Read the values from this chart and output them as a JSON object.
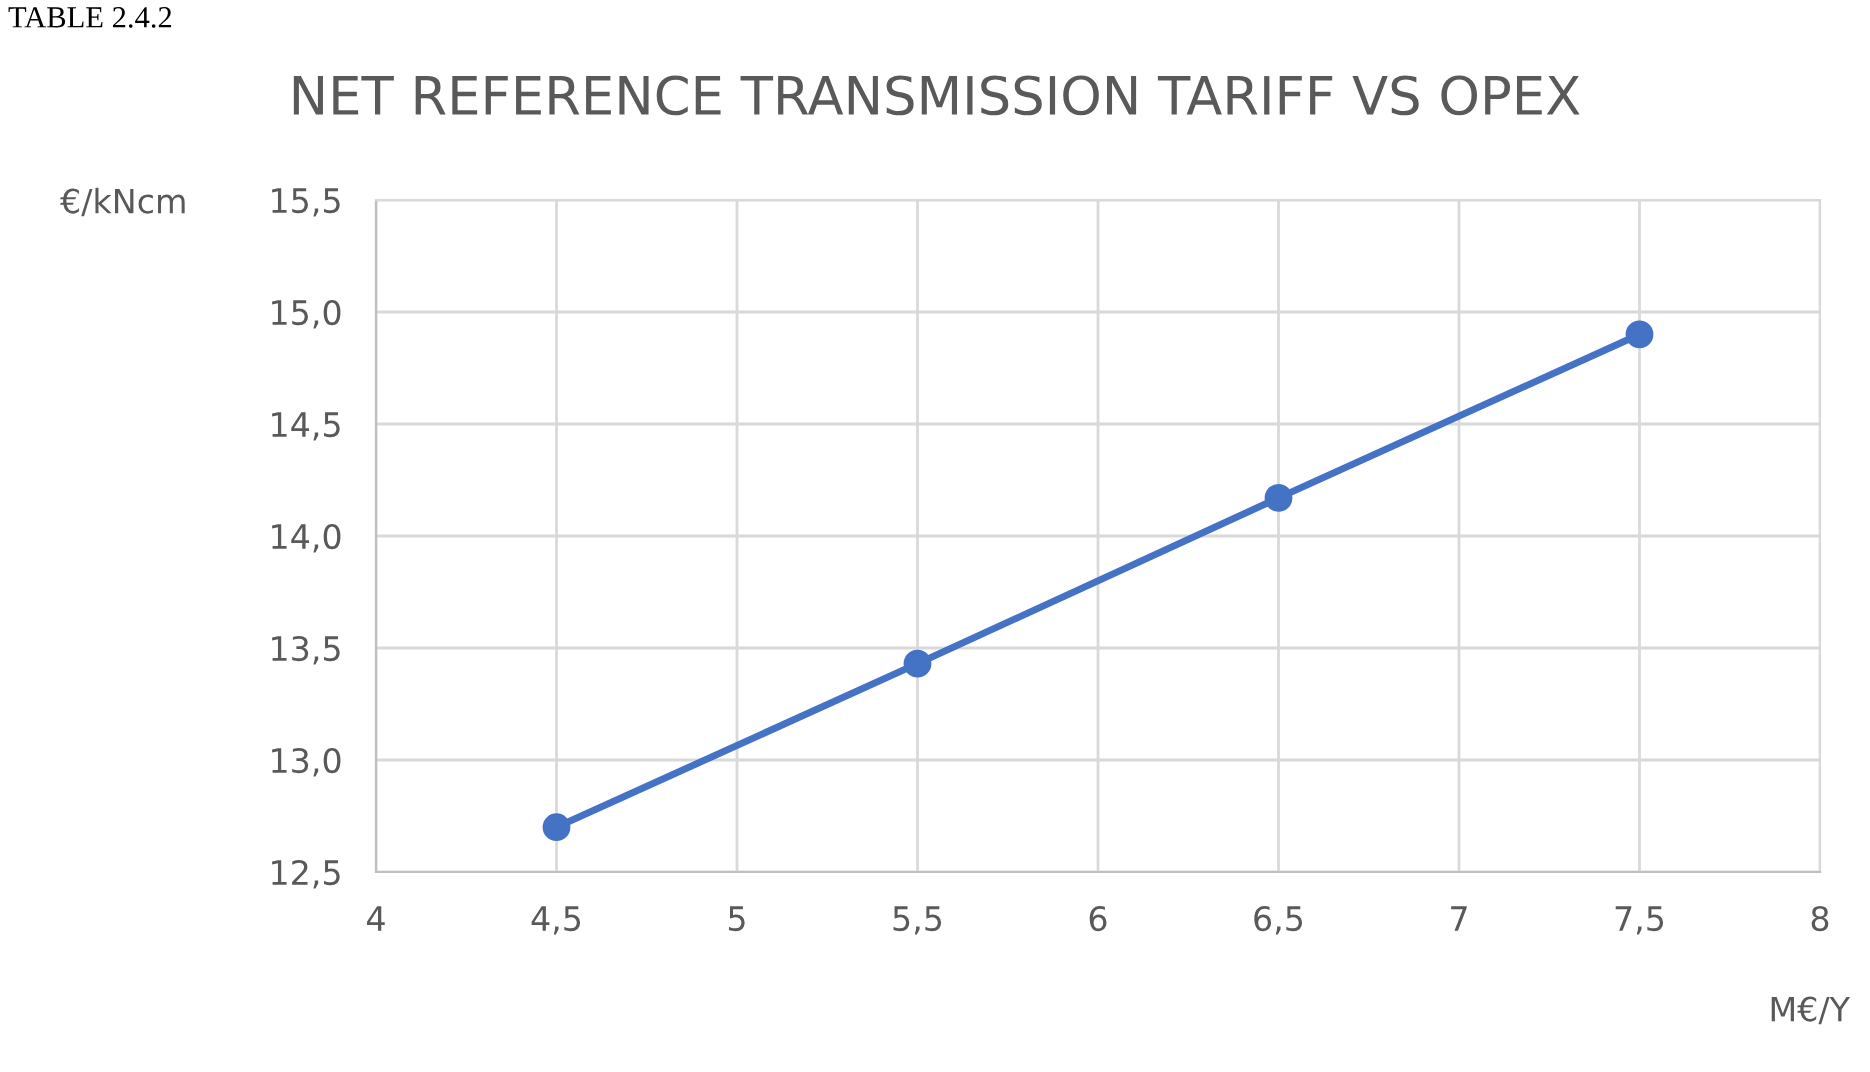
{
  "chart_data": {
    "type": "line",
    "title": "NET REFERENCE TRANSMISSION TARIFF VS OPEX",
    "xlabel": "M€/Y",
    "ylabel": "€/kNcm",
    "annotations": [
      "TABLE 2.4.2"
    ],
    "x": [
      4.5,
      5.5,
      6.5,
      7.5
    ],
    "series": [
      {
        "color": "#4472c4",
        "values": [
          12.7,
          13.43,
          14.17,
          14.9
        ]
      }
    ],
    "xlim": [
      4,
      8
    ],
    "xticks": [
      4,
      {
        "value": 4.5,
        "label": "4,5"
      },
      5,
      {
        "value": 5.5,
        "label": "5,5"
      },
      6,
      {
        "value": 6.5,
        "label": "6,5"
      },
      7,
      {
        "value": 7.5,
        "label": "7,5"
      },
      8
    ],
    "ylim": [
      12.5,
      15.5
    ],
    "yticks": [
      {
        "value": 12.5,
        "label": "12,5"
      },
      {
        "value": 13.0,
        "label": "13,0"
      },
      {
        "value": 13.5,
        "label": "13,5"
      },
      {
        "value": 14.0,
        "label": "14,0"
      },
      {
        "value": 14.5,
        "label": "14,5"
      },
      {
        "value": 15.0,
        "label": "15,0"
      },
      {
        "value": 15.5,
        "label": "15,5"
      }
    ],
    "grid": true,
    "marker": "circle",
    "line_style": "solid",
    "legend": false
  }
}
